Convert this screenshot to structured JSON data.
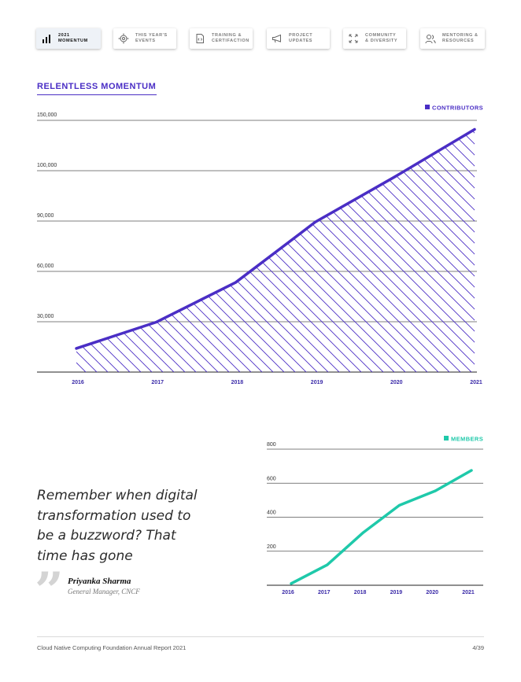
{
  "nav": {
    "tabs": [
      {
        "label": "2021\nMOMENTUM",
        "icon": "bar-chart-icon",
        "active": true
      },
      {
        "label": "THIS YEAR'S\nEVENTS",
        "icon": "target-icon",
        "active": false
      },
      {
        "label": "TRAINING &\nCERTIFACTION",
        "icon": "certificate-icon",
        "active": false
      },
      {
        "label": "PROJECT\nUPDATES",
        "icon": "megaphone-icon",
        "active": false
      },
      {
        "label": "COMMUNITY\n& DIVERSITY",
        "icon": "arrows-icon",
        "active": false
      },
      {
        "label": "MENTORING &\nRESOURCES",
        "icon": "people-icon",
        "active": false
      }
    ]
  },
  "section": {
    "heading": "RELENTLESS MOMENTUM"
  },
  "colors": {
    "purple": "#4a2ec5",
    "teal": "#1fc9aa",
    "grid": "#444444"
  },
  "chart_data": [
    {
      "type": "area",
      "title": "",
      "legend": "CONTRIBUTORS",
      "legend_position": "top-right",
      "categories": [
        "2016",
        "2017",
        "2018",
        "2019",
        "2020",
        "2021"
      ],
      "ytick_labels": [
        "30,000",
        "60,000",
        "90,000",
        "100,000",
        "150,000"
      ],
      "series": [
        {
          "name": "CONTRIBUTORS",
          "y_gridline_units": [
            0.47,
            0.99,
            1.78,
            2.98,
            3.88,
            4.82
          ]
        }
      ],
      "ylim": [
        0,
        5
      ],
      "grid": true
    },
    {
      "type": "line",
      "title": "",
      "legend": "MEMBERS",
      "legend_position": "top-right",
      "categories": [
        "2016",
        "2017",
        "2018",
        "2019",
        "2020",
        "2021"
      ],
      "yticks": [
        200,
        400,
        600,
        800
      ],
      "series": [
        {
          "name": "MEMBERS",
          "values": [
            10,
            120,
            310,
            470,
            555,
            675
          ]
        }
      ],
      "ylim": [
        0,
        800
      ],
      "grid": true
    }
  ],
  "quote": {
    "text": "Remember when digital transformation used to be a buzzword? That time has gone",
    "mark": "”",
    "author": "Priyanka Sharma",
    "author_title": "General Manager, CNCF"
  },
  "footer": {
    "left": "Cloud Native Computing Foundation Annual Report 2021",
    "page": "4/39"
  }
}
